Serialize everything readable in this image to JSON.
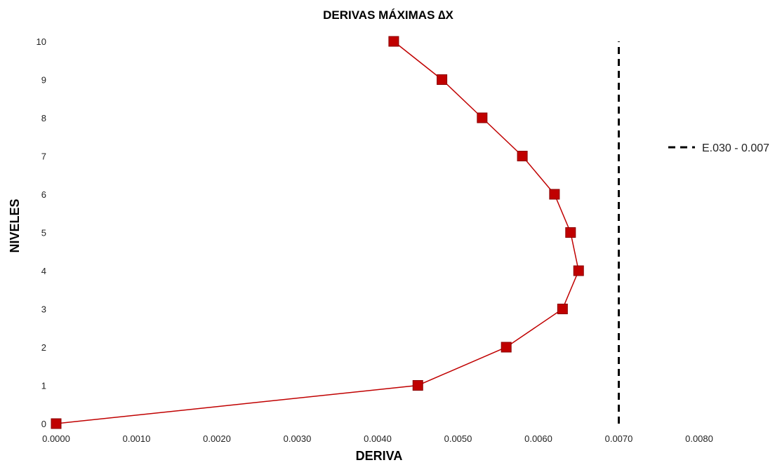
{
  "chart_data": {
    "type": "line",
    "title": "DERIVAS MÁXIMAS ∆X",
    "xlabel": "DERIVA",
    "ylabel": "NIVELES",
    "xlim": [
      0,
      0.008
    ],
    "ylim": [
      0,
      10
    ],
    "x_ticks": [
      "0.0000",
      "0.0010",
      "0.0020",
      "0.0030",
      "0.0040",
      "0.0050",
      "0.0060",
      "0.0070",
      "0.0080"
    ],
    "y_ticks": [
      "0",
      "1",
      "2",
      "3",
      "4",
      "5",
      "6",
      "7",
      "8",
      "9",
      "10"
    ],
    "grid": false,
    "series": [
      {
        "color": "#c00000",
        "marker": "square",
        "points": [
          {
            "x": 0.0,
            "y": 0
          },
          {
            "x": 0.0045,
            "y": 1
          },
          {
            "x": 0.0056,
            "y": 2
          },
          {
            "x": 0.0063,
            "y": 3
          },
          {
            "x": 0.0065,
            "y": 4
          },
          {
            "x": 0.0064,
            "y": 5
          },
          {
            "x": 0.0062,
            "y": 6
          },
          {
            "x": 0.0058,
            "y": 7
          },
          {
            "x": 0.0053,
            "y": 8
          },
          {
            "x": 0.0048,
            "y": 9
          },
          {
            "x": 0.0042,
            "y": 10
          }
        ]
      }
    ],
    "reference_line": {
      "name": "E.030 - 0.007",
      "x": 0.007,
      "y_range": [
        0,
        10
      ],
      "color": "#000000",
      "style": "dashed"
    },
    "legend": {
      "position": "right",
      "entries": [
        "E.030 - 0.007"
      ]
    }
  }
}
